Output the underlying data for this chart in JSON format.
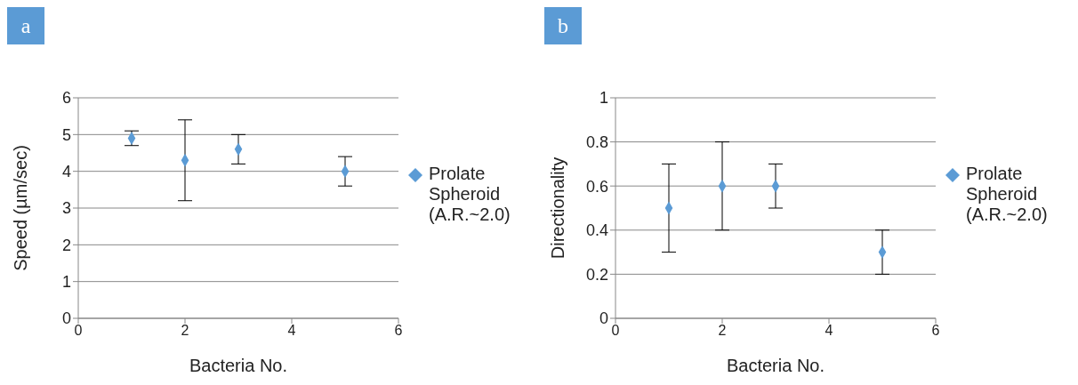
{
  "chart_data": [
    {
      "type": "scatter",
      "title": "a",
      "xlabel": "Bacteria No.",
      "ylabel": "Speed (µm/sec)",
      "x": [
        1,
        2,
        3,
        5
      ],
      "xlim": [
        0,
        6
      ],
      "xticks": [
        0,
        2,
        4,
        6
      ],
      "ylim": [
        0,
        6
      ],
      "yticks": [
        0,
        1,
        2,
        3,
        4,
        5,
        6
      ],
      "grid": "y",
      "legend": "right",
      "marker": "diamond",
      "series": [
        {
          "name": "Prolate Spheroid (A.R.~2.0)",
          "color": "#5b9bd5",
          "values": [
            4.9,
            4.3,
            4.6,
            4.0
          ],
          "errors": [
            0.2,
            1.1,
            0.4,
            0.4
          ]
        }
      ]
    },
    {
      "type": "scatter",
      "title": "b",
      "xlabel": "Bacteria No.",
      "ylabel": "Directionality",
      "x": [
        1,
        2,
        3,
        5
      ],
      "xlim": [
        0,
        6
      ],
      "xticks": [
        0,
        2,
        4,
        6
      ],
      "ylim": [
        0,
        1
      ],
      "yticks": [
        0,
        0.2,
        0.4,
        0.6,
        0.8,
        1
      ],
      "grid": "y",
      "legend": "right",
      "marker": "diamond",
      "series": [
        {
          "name": "Prolate Spheroid (A.R.~2.0)",
          "color": "#5b9bd5",
          "values": [
            0.5,
            0.6,
            0.6,
            0.3
          ],
          "errors": [
            0.2,
            0.2,
            0.1,
            0.1
          ]
        }
      ]
    }
  ]
}
